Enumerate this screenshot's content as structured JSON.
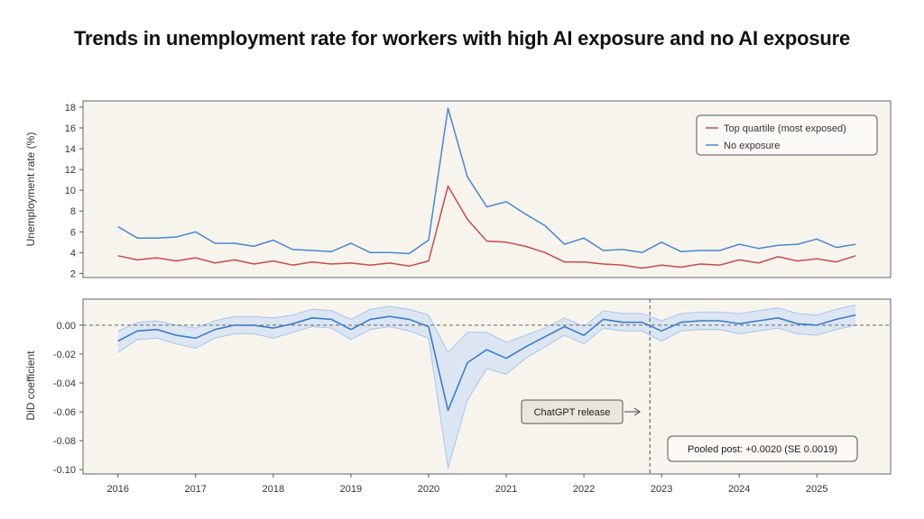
{
  "chart_data": [
    {
      "type": "line",
      "title": "Trends in unemployment rate for workers with high AI exposure and no AI exposure",
      "ylabel": "Unemployment rate (%)",
      "ylim": [
        1.6,
        18.6
      ],
      "yticks": [
        2,
        4,
        6,
        8,
        10,
        12,
        14,
        16,
        18
      ],
      "grid": false,
      "legend_position": "top-right",
      "x": [
        2016.0,
        2016.25,
        2016.5,
        2016.75,
        2017.0,
        2017.25,
        2017.5,
        2017.75,
        2018.0,
        2018.25,
        2018.5,
        2018.75,
        2019.0,
        2019.25,
        2019.5,
        2019.75,
        2020.0,
        2020.25,
        2020.5,
        2020.75,
        2021.0,
        2021.25,
        2021.5,
        2021.75,
        2022.0,
        2022.25,
        2022.5,
        2022.75,
        2023.0,
        2023.25,
        2023.5,
        2023.75,
        2024.0,
        2024.25,
        2024.5,
        2024.75,
        2025.0,
        2025.25,
        2025.5
      ],
      "series": [
        {
          "name": "Top quartile (most exposed)",
          "color": "#c94b4b",
          "values": [
            3.7,
            3.3,
            3.5,
            3.2,
            3.5,
            3.0,
            3.3,
            2.9,
            3.2,
            2.8,
            3.1,
            2.9,
            3.0,
            2.8,
            3.0,
            2.7,
            3.2,
            10.4,
            7.2,
            5.1,
            5.0,
            4.6,
            4.0,
            3.1,
            3.1,
            2.9,
            2.8,
            2.5,
            2.8,
            2.6,
            2.9,
            2.8,
            3.3,
            3.0,
            3.6,
            3.2,
            3.4,
            3.1,
            3.7
          ]
        },
        {
          "name": "No exposure",
          "color": "#4a86cf",
          "values": [
            6.5,
            5.4,
            5.4,
            5.5,
            6.0,
            4.9,
            4.9,
            4.6,
            5.2,
            4.3,
            4.2,
            4.1,
            4.9,
            4.0,
            4.0,
            3.9,
            5.2,
            17.9,
            11.3,
            8.4,
            8.9,
            7.7,
            6.6,
            4.8,
            5.4,
            4.2,
            4.3,
            4.0,
            5.0,
            4.1,
            4.2,
            4.2,
            4.8,
            4.4,
            4.7,
            4.8,
            5.3,
            4.5,
            4.8
          ]
        }
      ]
    },
    {
      "type": "line",
      "ylabel": "DiD coefficient",
      "ylim": [
        -0.103,
        0.018
      ],
      "yticks": [
        "0.00",
        "-0.02",
        "-0.04",
        "-0.06",
        "-0.08",
        "-0.10"
      ],
      "ytick_values": [
        0,
        -0.02,
        -0.04,
        -0.06,
        -0.08,
        -0.1
      ],
      "xticks": [
        "2016",
        "2017",
        "2018",
        "2019",
        "2020",
        "2021",
        "2022",
        "2023",
        "2024",
        "2025"
      ],
      "xtick_values": [
        2016,
        2017,
        2018,
        2019,
        2020,
        2021,
        2022,
        2023,
        2024,
        2025
      ],
      "xlim": [
        2015.55,
        2025.95
      ],
      "reference_line_y": 0,
      "vertical_marker_x": 2022.85,
      "annotations": {
        "chatgpt_release": "ChatGPT release",
        "pooled_post": "Pooled post: +0.0020 (SE 0.0019)"
      },
      "x": [
        2016.0,
        2016.25,
        2016.5,
        2016.75,
        2017.0,
        2017.25,
        2017.5,
        2017.75,
        2018.0,
        2018.25,
        2018.5,
        2018.75,
        2019.0,
        2019.25,
        2019.5,
        2019.75,
        2020.0,
        2020.25,
        2020.5,
        2020.75,
        2021.0,
        2021.25,
        2021.5,
        2021.75,
        2022.0,
        2022.25,
        2022.5,
        2022.75,
        2023.0,
        2023.25,
        2023.5,
        2023.75,
        2024.0,
        2024.25,
        2024.5,
        2024.75,
        2025.0,
        2025.25,
        2025.5
      ],
      "series": [
        {
          "color": "#3d7cc9",
          "values": [
            -0.011,
            -0.004,
            -0.003,
            -0.007,
            -0.009,
            -0.003,
            0.0,
            0.0,
            -0.002,
            0.001,
            0.005,
            0.004,
            -0.003,
            0.004,
            0.006,
            0.004,
            -0.001,
            -0.059,
            -0.026,
            -0.017,
            -0.023,
            -0.015,
            -0.008,
            -0.001,
            -0.007,
            0.004,
            0.002,
            0.002,
            -0.004,
            0.002,
            0.003,
            0.003,
            0.001,
            0.003,
            0.005,
            0.001,
            0.0,
            0.004,
            0.007
          ],
          "ci_lower": [
            -0.019,
            -0.01,
            -0.009,
            -0.013,
            -0.016,
            -0.009,
            -0.006,
            -0.006,
            -0.009,
            -0.005,
            -0.001,
            -0.002,
            -0.01,
            -0.003,
            -0.001,
            -0.004,
            -0.009,
            -0.099,
            -0.052,
            -0.03,
            -0.034,
            -0.023,
            -0.015,
            -0.007,
            -0.013,
            -0.002,
            -0.004,
            -0.004,
            -0.011,
            -0.004,
            -0.003,
            -0.003,
            -0.006,
            -0.004,
            -0.002,
            -0.006,
            -0.007,
            -0.003,
            0.0
          ],
          "ci_upper": [
            -0.004,
            0.002,
            0.003,
            0.0,
            -0.002,
            0.003,
            0.006,
            0.006,
            0.005,
            0.007,
            0.011,
            0.01,
            0.004,
            0.011,
            0.013,
            0.011,
            0.007,
            -0.019,
            -0.005,
            -0.005,
            -0.012,
            -0.007,
            -0.002,
            0.005,
            -0.001,
            0.01,
            0.008,
            0.008,
            0.003,
            0.008,
            0.009,
            0.009,
            0.008,
            0.01,
            0.012,
            0.008,
            0.007,
            0.011,
            0.014
          ]
        }
      ]
    }
  ]
}
